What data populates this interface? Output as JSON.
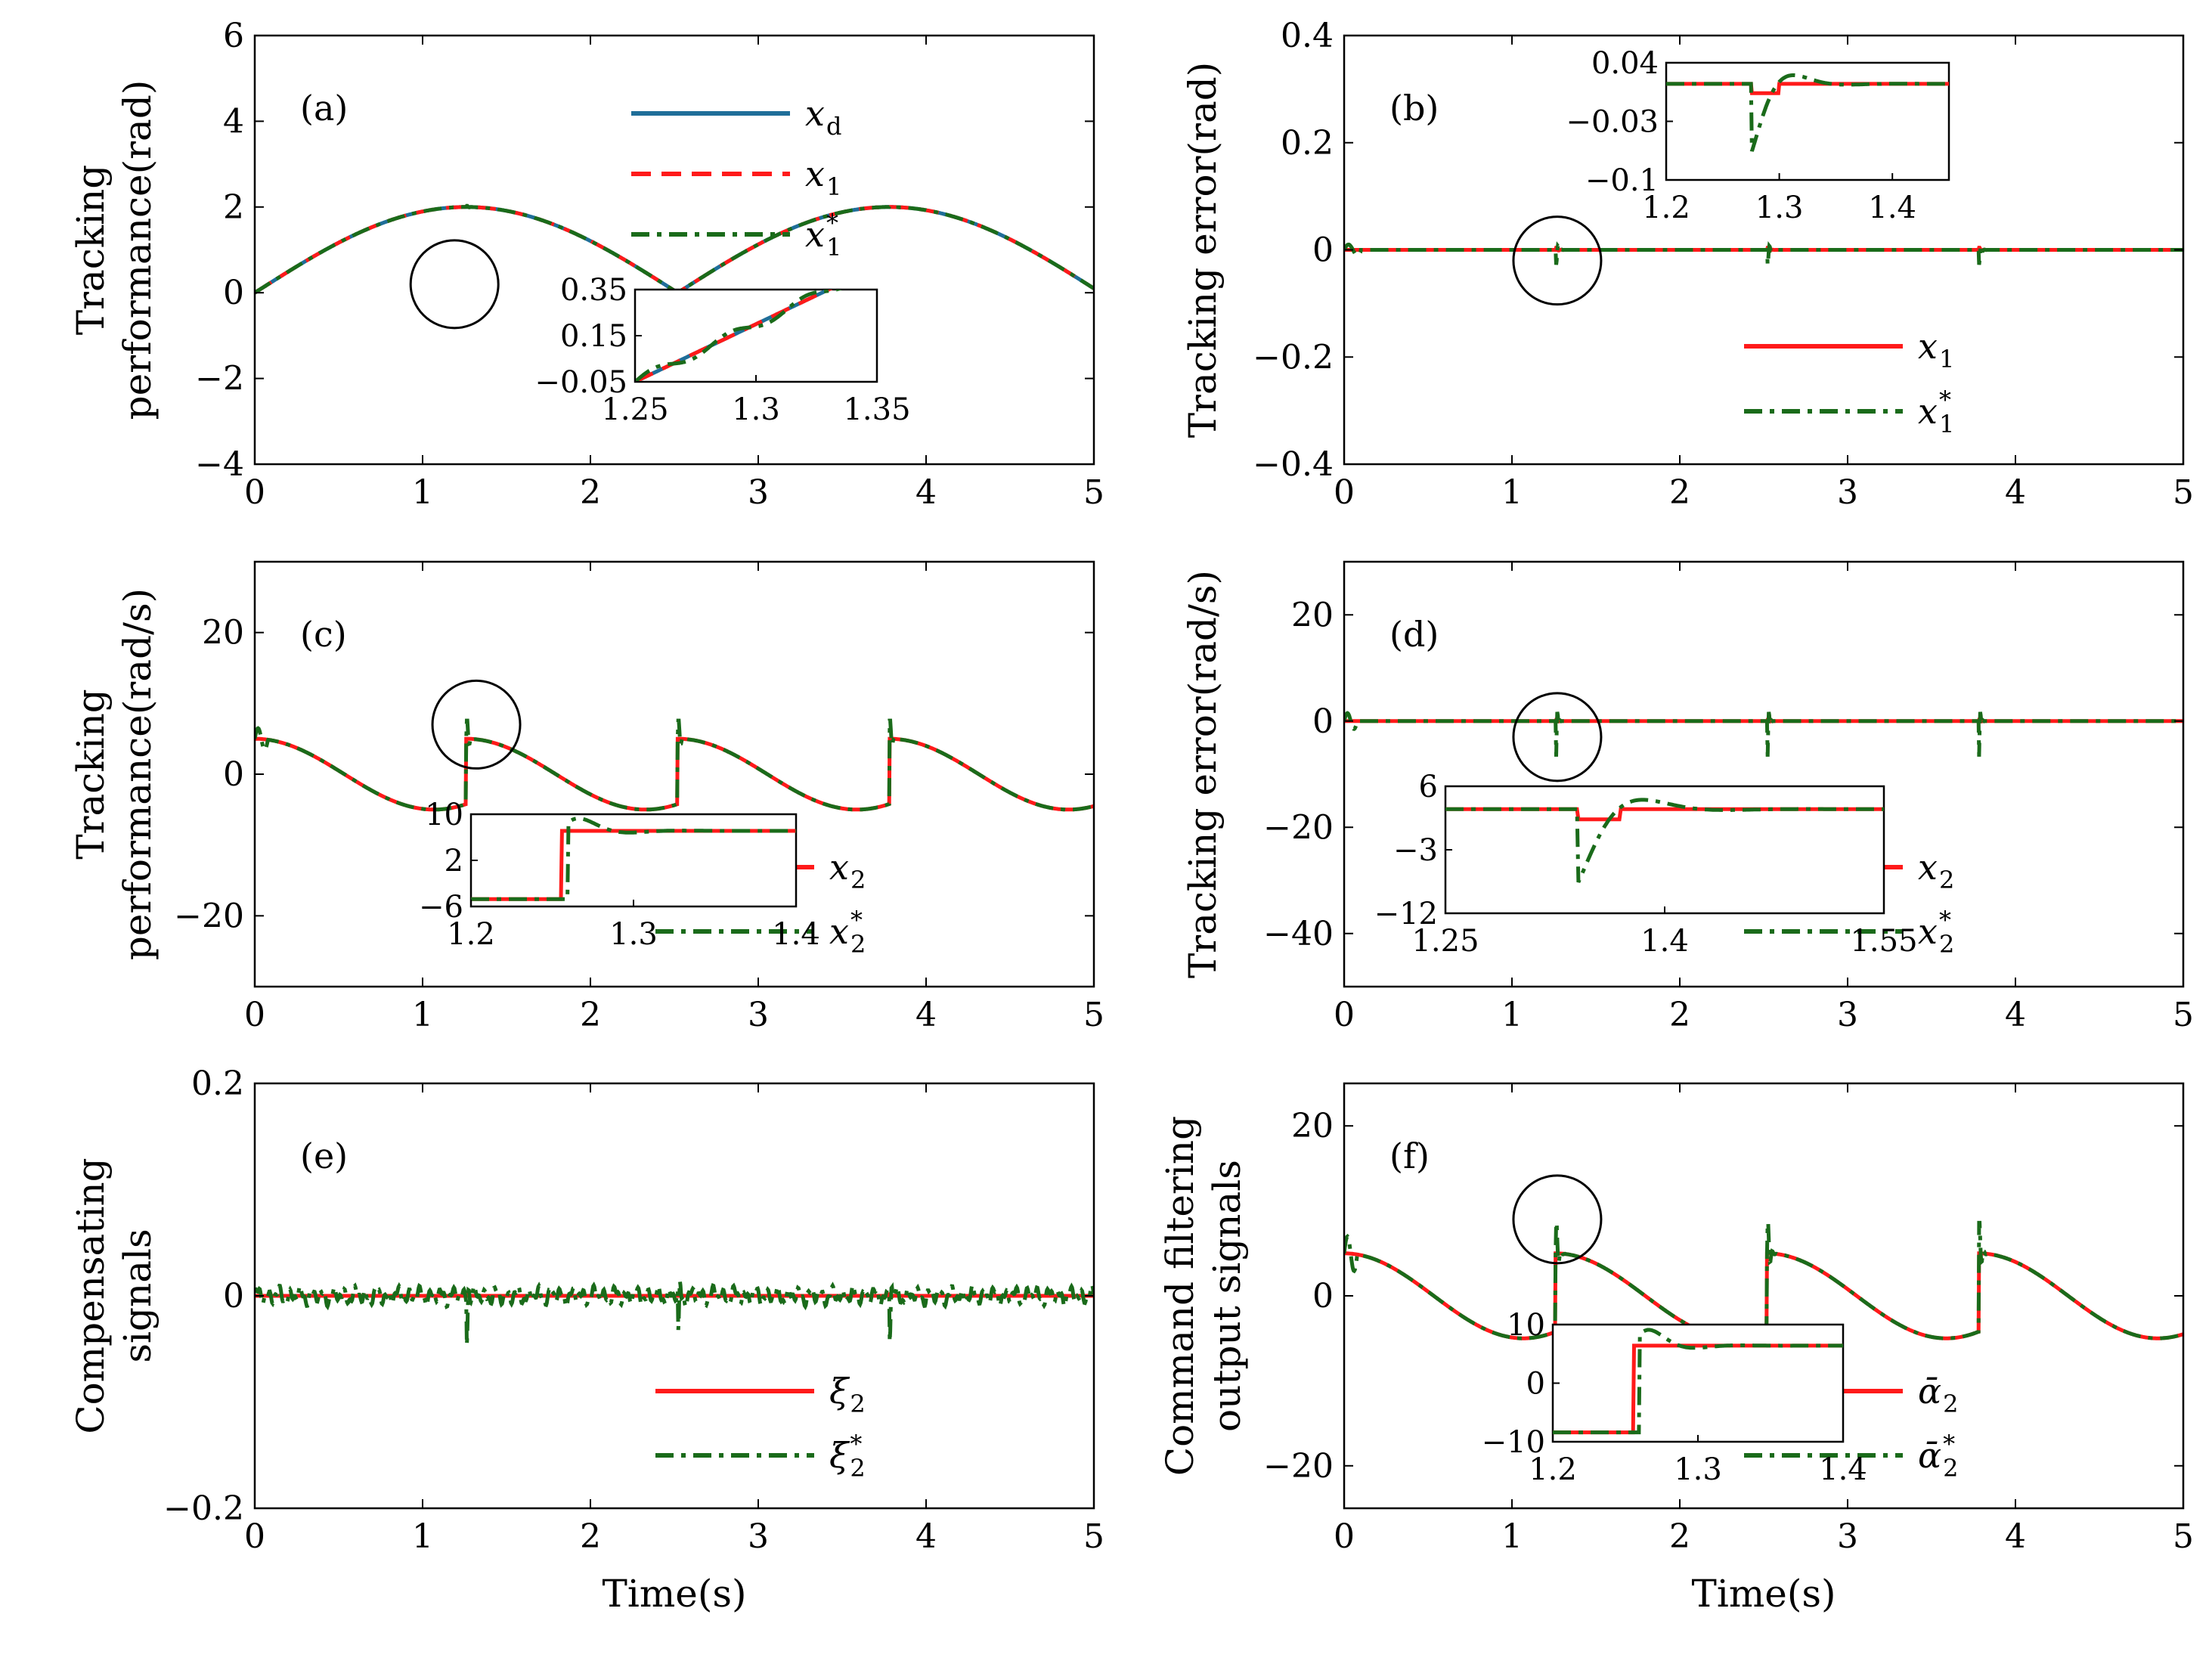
{
  "chart_data": [
    {
      "id": "a",
      "type": "line",
      "panel_label": "(a)",
      "ylabel": [
        "Tracking",
        "performance(rad)"
      ],
      "xlabel": "",
      "xlim": [
        0,
        5
      ],
      "ylim": [
        -4,
        6
      ],
      "xticks": [
        "0",
        "1",
        "2",
        "3",
        "4",
        "5"
      ],
      "yticks": [
        "−4",
        "−2",
        "0",
        "2",
        "4",
        "6"
      ],
      "series": [
        {
          "name": "x_d",
          "legend_base": "x",
          "legend_sub": "d",
          "legend_sup": "",
          "color": "#1f6e99",
          "style": "solid"
        },
        {
          "name": "x_1",
          "legend_base": "x",
          "legend_sub": "1",
          "legend_sup": "",
          "color": "#ff1a1a",
          "style": "dashed"
        },
        {
          "name": "x_1*",
          "legend_base": "x",
          "legend_sub": "1",
          "legend_sup": "*",
          "color": "#1a6b1a",
          "style": "dashdot"
        }
      ],
      "signal": "position",
      "circle": {
        "x": 1.19,
        "y": 0.2
      },
      "inset": {
        "xlim": [
          1.25,
          1.35
        ],
        "ylim": [
          -0.05,
          0.35
        ],
        "xticks": [
          "1.25",
          "1.3",
          "1.35"
        ],
        "yticks": [
          "−0.05",
          "0.15",
          "0.35"
        ]
      }
    },
    {
      "id": "b",
      "type": "line",
      "panel_label": "(b)",
      "ylabel": [
        "Tracking error(rad)"
      ],
      "xlabel": "",
      "xlim": [
        0,
        5
      ],
      "ylim": [
        -0.4,
        0.4
      ],
      "xticks": [
        "0",
        "1",
        "2",
        "3",
        "4",
        "5"
      ],
      "yticks": [
        "−0.4",
        "−0.2",
        "0",
        "0.2",
        "0.4"
      ],
      "series": [
        {
          "name": "x_1",
          "legend_base": "x",
          "legend_sub": "1",
          "legend_sup": "",
          "color": "#ff1a1a",
          "style": "solid"
        },
        {
          "name": "x_1*",
          "legend_base": "x",
          "legend_sub": "1",
          "legend_sup": "*",
          "color": "#1a6b1a",
          "style": "dashdot"
        }
      ],
      "signal": "error1",
      "circle": {
        "x": 1.27,
        "y": -0.02
      },
      "inset": {
        "xlim": [
          1.2,
          1.45
        ],
        "ylim": [
          -0.1,
          0.04
        ],
        "xticks": [
          "1.2",
          "1.3",
          "1.4"
        ],
        "yticks": [
          "−0.1",
          "−0.03",
          "0.04"
        ]
      }
    },
    {
      "id": "c",
      "type": "line",
      "panel_label": "(c)",
      "ylabel": [
        "Tracking",
        "performance(rad/s)"
      ],
      "xlabel": "",
      "xlim": [
        0,
        5
      ],
      "ylim": [
        -30,
        30
      ],
      "xticks": [
        "0",
        "1",
        "2",
        "3",
        "4",
        "5"
      ],
      "yticks": [
        "−20",
        "0",
        "20"
      ],
      "series": [
        {
          "name": "x_2",
          "legend_base": "x",
          "legend_sub": "2",
          "legend_sup": "",
          "color": "#ff1a1a",
          "style": "solid"
        },
        {
          "name": "x_2*",
          "legend_base": "x",
          "legend_sub": "2",
          "legend_sup": "*",
          "color": "#1a6b1a",
          "style": "dashdot"
        }
      ],
      "signal": "velocity",
      "circle": {
        "x": 1.32,
        "y": 7
      },
      "inset": {
        "xlim": [
          1.2,
          1.4
        ],
        "ylim": [
          -6,
          10
        ],
        "xticks": [
          "1.2",
          "1.3",
          "1.4"
        ],
        "yticks": [
          "−6",
          "2",
          "10"
        ]
      }
    },
    {
      "id": "d",
      "type": "line",
      "panel_label": "(d)",
      "ylabel": [
        "Tracking error(rad/s)"
      ],
      "xlabel": "",
      "xlim": [
        0,
        5
      ],
      "ylim": [
        -50,
        30
      ],
      "xticks": [
        "0",
        "1",
        "2",
        "3",
        "4",
        "5"
      ],
      "yticks": [
        "−40",
        "−20",
        "0",
        "20"
      ],
      "series": [
        {
          "name": "x_2",
          "legend_base": "x",
          "legend_sub": "2",
          "legend_sup": "",
          "color": "#ff1a1a",
          "style": "solid"
        },
        {
          "name": "x_2*",
          "legend_base": "x",
          "legend_sub": "2",
          "legend_sup": "*",
          "color": "#1a6b1a",
          "style": "dashdot"
        }
      ],
      "signal": "error2",
      "circle": {
        "x": 1.27,
        "y": -3
      },
      "inset": {
        "xlim": [
          1.25,
          1.55
        ],
        "ylim": [
          -12,
          6
        ],
        "xticks": [
          "1.25",
          "1.4",
          "1.55"
        ],
        "yticks": [
          "−12",
          "−3",
          "6"
        ]
      }
    },
    {
      "id": "e",
      "type": "line",
      "panel_label": "(e)",
      "ylabel": [
        "Compensating",
        "signals"
      ],
      "xlabel": "Time(s)",
      "xlim": [
        0,
        5
      ],
      "ylim": [
        -0.2,
        0.2
      ],
      "xticks": [
        "0",
        "1",
        "2",
        "3",
        "4",
        "5"
      ],
      "yticks": [
        "−0.2",
        "0",
        "0.2"
      ],
      "series": [
        {
          "name": "ξ_2",
          "legend_base": "ξ",
          "legend_sub": "2",
          "legend_sup": "",
          "color": "#ff1a1a",
          "style": "solid"
        },
        {
          "name": "ξ_2*",
          "legend_base": "ξ",
          "legend_sub": "2",
          "legend_sup": "*",
          "color": "#1a6b1a",
          "style": "dashdot"
        }
      ],
      "signal": "compensate",
      "circle": null,
      "inset": null
    },
    {
      "id": "f",
      "type": "line",
      "panel_label": "(f)",
      "ylabel": [
        "Command filtering",
        "output signals"
      ],
      "xlabel": "Time(s)",
      "xlim": [
        0,
        5
      ],
      "ylim": [
        -25,
        25
      ],
      "xticks": [
        "0",
        "1",
        "2",
        "3",
        "4",
        "5"
      ],
      "yticks": [
        "−20",
        "0",
        "20"
      ],
      "series": [
        {
          "name": "ᾱ_2",
          "legend_base": "ᾱ",
          "legend_sub": "2",
          "legend_sup": "",
          "color": "#ff1a1a",
          "style": "solid"
        },
        {
          "name": "ᾱ_2*",
          "legend_base": "ᾱ",
          "legend_sub": "2",
          "legend_sup": "*",
          "color": "#1a6b1a",
          "style": "dashdot"
        }
      ],
      "signal": "filtered",
      "circle": {
        "x": 1.27,
        "y": 9
      },
      "inset": {
        "xlim": [
          1.2,
          1.4
        ],
        "ylim": [
          -10,
          10
        ],
        "xticks": [
          "1.2",
          "1.3",
          "1.4"
        ],
        "yticks": [
          "−10",
          "0",
          "10"
        ]
      }
    }
  ]
}
